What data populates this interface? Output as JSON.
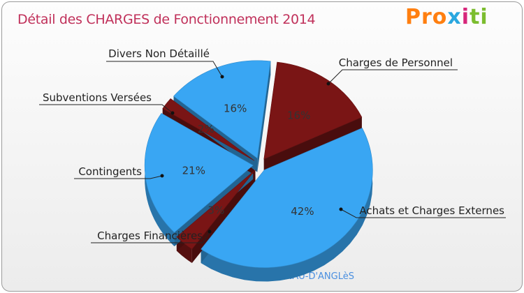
{
  "header": {
    "title": "Détail des CHARGES de Fonctionnement 2014",
    "logo": [
      "Pro",
      "x",
      "i",
      "ti"
    ]
  },
  "footer": {
    "commune": "CASTELNAU-D'ANGLèS"
  },
  "chart_data": {
    "type": "pie",
    "title": "Détail des CHARGES de Fonctionnement 2014",
    "slices": [
      {
        "label": "Charges de Personnel",
        "value": 16,
        "display": "16%",
        "color": "#7a1515"
      },
      {
        "label": "Achats et Charges Externes",
        "value": 42,
        "display": "42%",
        "color": "#39a6f3"
      },
      {
        "label": "Charges Financières",
        "value": 3,
        "display": "3%",
        "color": "#7a1515"
      },
      {
        "label": "Contingents",
        "value": 21,
        "display": "21%",
        "color": "#39a6f3"
      },
      {
        "label": "Subventions Versées",
        "value": 2,
        "display": "2%",
        "color": "#7a1515"
      },
      {
        "label": "Divers Non Détaillé",
        "value": 16,
        "display": "16%",
        "color": "#39a6f3"
      }
    ]
  }
}
